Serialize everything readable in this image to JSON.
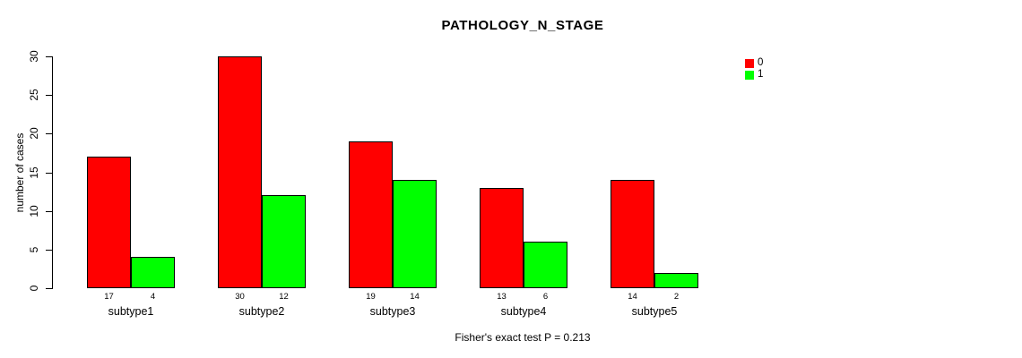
{
  "chart_data": {
    "type": "bar",
    "title": "PATHOLOGY_N_STAGE",
    "xlabel": "",
    "ylabel": "number of cases",
    "categories": [
      "subtype1",
      "subtype2",
      "subtype3",
      "subtype4",
      "subtype5"
    ],
    "series": [
      {
        "name": "0",
        "color": "#FF0000",
        "values": [
          17,
          30,
          19,
          13,
          14
        ]
      },
      {
        "name": "1",
        "color": "#00FF00",
        "values": [
          4,
          12,
          14,
          6,
          2
        ]
      }
    ],
    "bar_value_labels_shown": true,
    "ylim": [
      0,
      30
    ],
    "yticks": [
      0,
      5,
      10,
      15,
      20,
      25,
      30
    ],
    "grid": false,
    "legend_position": "top-right",
    "annotation": "Fisher's exact test P = 0.213"
  }
}
